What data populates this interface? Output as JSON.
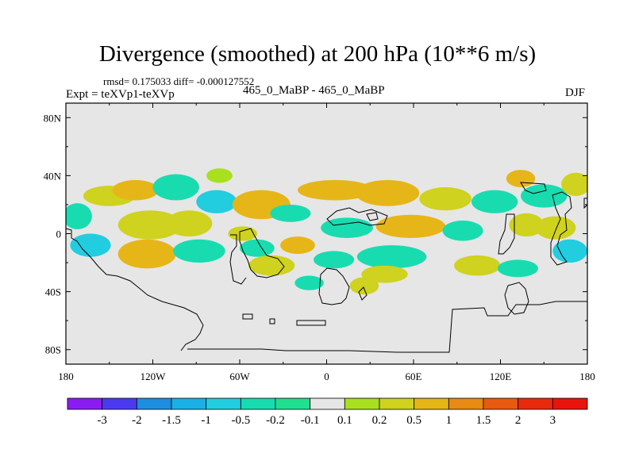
{
  "chart_data": {
    "type": "heatmap",
    "title": "Divergence (smoothed) at 200 hPa (10**6 m/s)",
    "rmsd_text": "rmsd= 0.175033 diff= -0.000127552",
    "experiment": "Expt = teXVp1-teXVp",
    "cases": "465_0_MaBP - 465_0_MaBP",
    "season": "DJF",
    "xlabel": "",
    "ylabel": "",
    "x_ticks": [
      "180",
      "120W",
      "60W",
      "0",
      "60E",
      "120E",
      "180"
    ],
    "y_ticks": [
      "80N",
      "40N",
      "0",
      "40S",
      "80S"
    ],
    "xlim": [
      -180,
      180
    ],
    "ylim": [
      -90,
      90
    ],
    "colorbar_levels": [
      "-3",
      "-2",
      "-1.5",
      "-1",
      "-0.5",
      "-0.2",
      "-0.1",
      "0.1",
      "0.2",
      "0.5",
      "1",
      "1.5",
      "2",
      "3"
    ],
    "colorbar_colors": [
      "#8a1cf0",
      "#4a3bf0",
      "#1e8ee0",
      "#1ab0e6",
      "#22cde0",
      "#18dcb0",
      "#20e090",
      "#e6e6e6",
      "#a8e020",
      "#cfd21e",
      "#e6b618",
      "#e88a14",
      "#e85a10",
      "#e82a0c",
      "#e8140c"
    ],
    "blobs": [
      {
        "lon": -172,
        "lat": 12,
        "rx": 10,
        "ry": 9,
        "value": -0.3
      },
      {
        "lon": -163,
        "lat": -8,
        "rx": 14,
        "ry": 8,
        "value": -0.6
      },
      {
        "lon": -150,
        "lat": 26,
        "rx": 18,
        "ry": 7,
        "value": 0.3
      },
      {
        "lon": -132,
        "lat": 30,
        "rx": 16,
        "ry": 7,
        "value": 0.6
      },
      {
        "lon": -122,
        "lat": 6,
        "rx": 22,
        "ry": 10,
        "value": 0.3
      },
      {
        "lon": -124,
        "lat": -14,
        "rx": 20,
        "ry": 10,
        "value": 0.6
      },
      {
        "lon": -104,
        "lat": 32,
        "rx": 16,
        "ry": 9,
        "value": -0.3
      },
      {
        "lon": -95,
        "lat": 7,
        "rx": 16,
        "ry": 9,
        "value": 0.3
      },
      {
        "lon": -88,
        "lat": -12,
        "rx": 18,
        "ry": 8,
        "value": -0.3
      },
      {
        "lon": -76,
        "lat": 22,
        "rx": 14,
        "ry": 8,
        "value": -0.6
      },
      {
        "lon": -74,
        "lat": 40,
        "rx": 9,
        "ry": 5,
        "value": 0.15
      },
      {
        "lon": -58,
        "lat": 0,
        "rx": 10,
        "ry": 5,
        "value": 0.3
      },
      {
        "lon": -48,
        "lat": -10,
        "rx": 12,
        "ry": 6,
        "value": -0.3
      },
      {
        "lon": -45,
        "lat": 20,
        "rx": 20,
        "ry": 10,
        "value": 0.6
      },
      {
        "lon": -38,
        "lat": -22,
        "rx": 16,
        "ry": 7,
        "value": 0.3
      },
      {
        "lon": -25,
        "lat": 14,
        "rx": 14,
        "ry": 6,
        "value": -0.3
      },
      {
        "lon": -20,
        "lat": -8,
        "rx": 12,
        "ry": 6,
        "value": 0.6
      },
      {
        "lon": -12,
        "lat": -34,
        "rx": 10,
        "ry": 5,
        "value": -0.3
      },
      {
        "lon": 6,
        "lat": 30,
        "rx": 26,
        "ry": 7,
        "value": 0.6
      },
      {
        "lon": 14,
        "lat": 4,
        "rx": 18,
        "ry": 7,
        "value": -0.3
      },
      {
        "lon": 5,
        "lat": -18,
        "rx": 14,
        "ry": 6,
        "value": -0.3
      },
      {
        "lon": 26,
        "lat": -36,
        "rx": 10,
        "ry": 6,
        "value": 0.3
      },
      {
        "lon": 42,
        "lat": 28,
        "rx": 22,
        "ry": 9,
        "value": 0.6
      },
      {
        "lon": 58,
        "lat": 5,
        "rx": 24,
        "ry": 8,
        "value": 0.6
      },
      {
        "lon": 45,
        "lat": -16,
        "rx": 24,
        "ry": 8,
        "value": -0.3
      },
      {
        "lon": 40,
        "lat": -28,
        "rx": 16,
        "ry": 6,
        "value": 0.3
      },
      {
        "lon": 82,
        "lat": 24,
        "rx": 18,
        "ry": 8,
        "value": 0.3
      },
      {
        "lon": 94,
        "lat": 2,
        "rx": 14,
        "ry": 7,
        "value": -0.3
      },
      {
        "lon": 104,
        "lat": -22,
        "rx": 16,
        "ry": 7,
        "value": 0.3
      },
      {
        "lon": 116,
        "lat": 22,
        "rx": 16,
        "ry": 8,
        "value": -0.3
      },
      {
        "lon": 134,
        "lat": 38,
        "rx": 10,
        "ry": 6,
        "value": 0.6
      },
      {
        "lon": 138,
        "lat": 6,
        "rx": 12,
        "ry": 8,
        "value": 0.3
      },
      {
        "lon": 132,
        "lat": -24,
        "rx": 14,
        "ry": 6,
        "value": -0.3
      },
      {
        "lon": 150,
        "lat": 26,
        "rx": 16,
        "ry": 8,
        "value": -0.3
      },
      {
        "lon": 158,
        "lat": 4,
        "rx": 14,
        "ry": 8,
        "value": 0.3
      },
      {
        "lon": 168,
        "lat": -12,
        "rx": 12,
        "ry": 8,
        "value": -0.6
      },
      {
        "lon": 172,
        "lat": 34,
        "rx": 10,
        "ry": 8,
        "value": 0.3
      }
    ]
  }
}
